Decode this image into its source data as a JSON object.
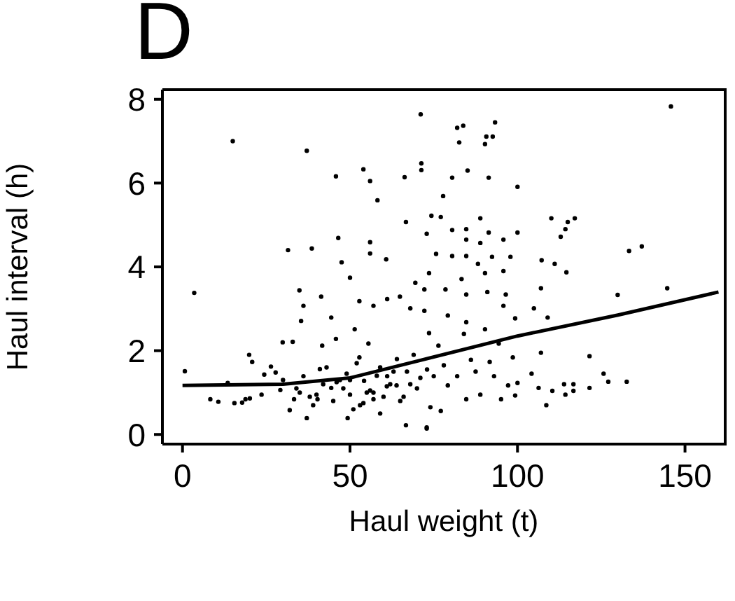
{
  "chart_data": {
    "type": "scatter",
    "title": "D",
    "xlabel": "Haul weight (t)",
    "ylabel": "Haul interval (h)",
    "xlim": [
      -6,
      162
    ],
    "ylim": [
      -0.23,
      8.23
    ],
    "xticks": [
      0,
      50,
      100,
      150
    ],
    "yticks": [
      0,
      2,
      4,
      6,
      8
    ],
    "series": [
      {
        "marker": "circle",
        "color": "#000000",
        "x": [
          15,
          37.1,
          71.1,
          3.5,
          0.7,
          45.8,
          54,
          56,
          66.3,
          71.3,
          71.3,
          58.2,
          66.7,
          31.5,
          38.6,
          46.5,
          56,
          56,
          60.8,
          47.5,
          34.9,
          41.4,
          36.1,
          35.4,
          44.4,
          29.9,
          32.9,
          19.9,
          20.8,
          8.3,
          10.7,
          15.5,
          17.8,
          13.5,
          24.4,
          27.8,
          20.1,
          32,
          37.1,
          49.3,
          66.7,
          72.9,
          59,
          36.1,
          41,
          29.2,
          33.3,
          40.3,
          44.4,
          50,
          54.2,
          57,
          61.1,
          63.9,
          52.8,
          55.5,
          51.4,
          57,
          61.1,
          64.9,
          68,
          69.5,
          72.2,
          50,
          52.8,
          41.7,
          45.8,
          26.4,
          18.8,
          23.6,
          145.8,
          82,
          83.8,
          93.3,
          90.7,
          92.6,
          82.6,
          90.3,
          80.5,
          85.1,
          91.4,
          100,
          77.8,
          74.3,
          77.1,
          88.9,
          110.1,
          115,
          117.1,
          114.3,
          112.9,
          72.9,
          80.5,
          84.7,
          91.4,
          100,
          95.8,
          88.9,
          84.7,
          133.3,
          137.1,
          75.7,
          80.5,
          84.7,
          92.4,
          97.9,
          107.2,
          111.1,
          88.2,
          73.6,
          83.3,
          90.3,
          95.8,
          114.6,
          78.5,
          84.7,
          91,
          96.5,
          107,
          129.9,
          144.7,
          72.2,
          79.2,
          84.7,
          95.8,
          99.3,
          104.9,
          109,
          73.6,
          84,
          90.3,
          94.4,
          76.4,
          107,
          121.5,
          98.6,
          86.1,
          91.7,
          104.2,
          125.7,
          127.1,
          132.6,
          113.9,
          116.7,
          121.5,
          110.4,
          114.3,
          116.7,
          106.3,
          100,
          97.2,
          95.1,
          99.3,
          88.9,
          84.7,
          79.2,
          77.1,
          72.9,
          108.6,
          82,
          87.5,
          93,
          75,
          35,
          38,
          42,
          45,
          48,
          50,
          53,
          55,
          58,
          60,
          62,
          65,
          67,
          70,
          43,
          47,
          52,
          57,
          63,
          68,
          30,
          34,
          39,
          46,
          51,
          56,
          61,
          66,
          71,
          74,
          40,
          49,
          54,
          59,
          64,
          69,
          73,
          78
        ],
        "values": [
          7.0,
          6.77,
          7.64,
          3.38,
          1.51,
          6.16,
          6.33,
          6.05,
          6.14,
          6.47,
          6.31,
          5.59,
          5.07,
          4.4,
          4.44,
          4.69,
          4.59,
          4.32,
          4.18,
          4.11,
          3.44,
          3.29,
          3.07,
          2.71,
          2.79,
          2.2,
          2.21,
          1.9,
          1.73,
          0.84,
          0.78,
          0.75,
          0.76,
          1.23,
          1.43,
          1.48,
          0.86,
          0.58,
          0.39,
          0.39,
          0.22,
          0.14,
          0.5,
          1.39,
          1.56,
          1.06,
          0.84,
          0.84,
          1.11,
          0.95,
          1.28,
          0.84,
          1.39,
          1.17,
          1.84,
          2.17,
          2.51,
          3.07,
          3.23,
          3.29,
          3.01,
          3.62,
          3.46,
          3.74,
          3.18,
          2.12,
          2.28,
          1.62,
          0.84,
          0.95,
          7.83,
          7.32,
          7.37,
          7.45,
          7.11,
          7.11,
          6.97,
          6.93,
          6.13,
          6.3,
          6.13,
          5.91,
          5.69,
          5.22,
          5.19,
          5.16,
          5.16,
          5.07,
          5.16,
          4.9,
          4.72,
          4.79,
          4.88,
          4.9,
          4.82,
          4.82,
          4.65,
          4.57,
          4.65,
          4.38,
          4.49,
          4.31,
          4.26,
          4.26,
          4.24,
          4.24,
          4.16,
          4.07,
          4.07,
          3.85,
          3.71,
          3.85,
          3.9,
          3.87,
          3.46,
          3.34,
          3.4,
          3.34,
          3.49,
          3.33,
          3.49,
          2.95,
          2.84,
          2.68,
          3.07,
          2.77,
          3.01,
          2.79,
          2.42,
          2.4,
          2.51,
          2.17,
          2.12,
          1.95,
          1.87,
          1.84,
          1.78,
          1.73,
          1.45,
          1.45,
          1.26,
          1.26,
          1.2,
          1.2,
          1.11,
          1.04,
          0.95,
          1.04,
          1.11,
          1.23,
          1.17,
          0.84,
          0.93,
          0.95,
          0.84,
          1.17,
          0.56,
          0.17,
          0.7,
          1.39,
          1.5,
          1.39,
          1.39,
          1.0,
          0.9,
          1.2,
          0.8,
          1.1,
          1.3,
          0.7,
          1.0,
          1.4,
          0.9,
          1.2,
          0.8,
          1.5,
          1.1,
          1.6,
          1.3,
          1.7,
          1.0,
          1.5,
          1.2,
          1.3,
          1.1,
          0.7,
          1.25,
          0.6,
          1.05,
          1.15,
          0.9,
          1.35,
          0.65,
          0.95,
          1.45,
          0.75,
          1.6,
          1.8,
          1.9,
          1.55,
          1.65
        ]
      },
      {
        "type": "line",
        "marker": "none",
        "color": "#000000",
        "x": [
          0,
          30,
          50,
          70,
          100,
          130,
          160
        ],
        "values": [
          1.17,
          1.2,
          1.35,
          1.75,
          2.35,
          2.85,
          3.4
        ]
      }
    ]
  }
}
